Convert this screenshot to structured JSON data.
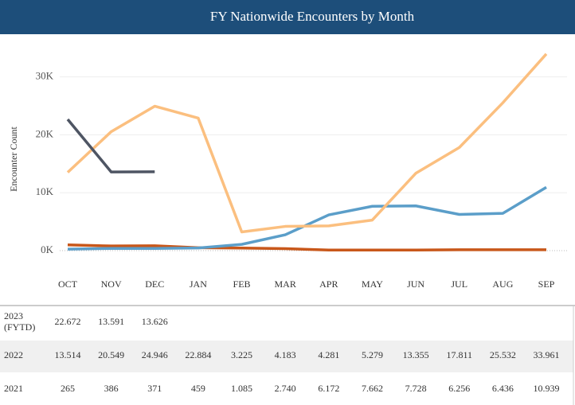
{
  "chart_data": {
    "type": "line",
    "title": "FY Nationwide Encounters by Month",
    "y_label": "Encounter Count",
    "categories": [
      "OCT",
      "NOV",
      "DEC",
      "JAN",
      "FEB",
      "MAR",
      "APR",
      "MAY",
      "JUN",
      "JUL",
      "AUG",
      "SEP"
    ],
    "ylim": [
      0,
      36000
    ],
    "yticks": [
      {
        "value": 0,
        "label": "0K"
      },
      {
        "value": 10000,
        "label": "10K"
      },
      {
        "value": 20000,
        "label": "20K"
      },
      {
        "value": 30000,
        "label": "30K"
      }
    ],
    "grid": true,
    "series": [
      {
        "name": "2023 (FYTD)",
        "color": "#4e5563",
        "values": [
          22672,
          13591,
          13626,
          null,
          null,
          null,
          null,
          null,
          null,
          null,
          null,
          null
        ],
        "value_labels": [
          "22.672",
          "13.591",
          "13.626",
          null,
          null,
          null,
          null,
          null,
          null,
          null,
          null,
          null
        ]
      },
      {
        "name": "2022",
        "color": "#fbbf7f",
        "values": [
          13514,
          20549,
          24946,
          22884,
          3225,
          4183,
          4281,
          5279,
          13355,
          17811,
          25532,
          33961
        ],
        "value_labels": [
          "13.514",
          "20.549",
          "24.946",
          "22.884",
          "3.225",
          "4.183",
          "4.281",
          "5.279",
          "13.355",
          "17.811",
          "25.532",
          "33.961"
        ]
      },
      {
        "name": "2021",
        "color": "#5b9ec9",
        "values": [
          265,
          386,
          371,
          459,
          1085,
          2740,
          6172,
          7662,
          7728,
          6256,
          6436,
          10939
        ],
        "value_labels": [
          "265",
          "386",
          "371",
          "459",
          "1.085",
          "2.740",
          "6.172",
          "7.662",
          "7.728",
          "6.256",
          "6.436",
          "10.939"
        ]
      },
      {
        "color": "#c8571a",
        "values": [
          1000,
          800,
          850,
          500,
          450,
          350,
          100,
          100,
          100,
          150,
          150,
          150
        ]
      }
    ]
  }
}
